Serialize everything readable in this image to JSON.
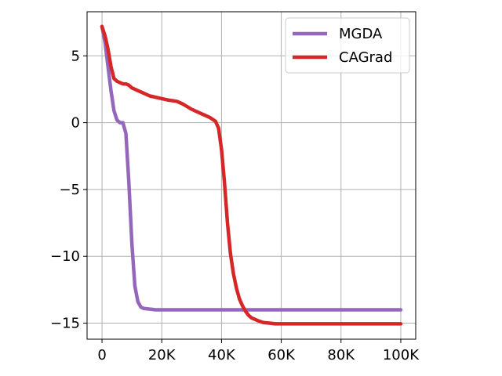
{
  "chart_data": {
    "type": "line",
    "title": "",
    "xlabel": "",
    "ylabel": "",
    "xlim": [
      -5000,
      105000
    ],
    "ylim": [
      -16.2,
      8.3
    ],
    "grid": true,
    "legend_position": "top-right",
    "x_ticks": [
      {
        "value": 0,
        "label": "0"
      },
      {
        "value": 20000,
        "label": "20K"
      },
      {
        "value": 40000,
        "label": "40K"
      },
      {
        "value": 60000,
        "label": "60K"
      },
      {
        "value": 80000,
        "label": "80K"
      },
      {
        "value": 100000,
        "label": "100K"
      }
    ],
    "y_ticks": [
      {
        "value": 5,
        "label": "5"
      },
      {
        "value": 0,
        "label": "0"
      },
      {
        "value": -5,
        "label": "−5"
      },
      {
        "value": -10,
        "label": "−10"
      },
      {
        "value": -15,
        "label": "−15"
      }
    ],
    "series": [
      {
        "name": "MGDA",
        "color": "#9467bd",
        "x": [
          0,
          1000,
          2000,
          3000,
          4000,
          5000,
          6000,
          7000,
          8000,
          9000,
          10000,
          11000,
          12000,
          13000,
          14000,
          16000,
          18000,
          20000,
          25000,
          40000,
          60000,
          80000,
          100000
        ],
        "y": [
          7.2,
          6.0,
          4.2,
          2.4,
          0.9,
          0.2,
          0.0,
          0.0,
          -0.8,
          -4.5,
          -9.0,
          -12.2,
          -13.4,
          -13.8,
          -13.9,
          -13.95,
          -14.0,
          -14.0,
          -14.0,
          -14.0,
          -14.0,
          -14.0,
          -14.0
        ]
      },
      {
        "name": "CAGrad",
        "color": "#d62728",
        "x": [
          0,
          1000,
          2000,
          3000,
          4000,
          5000,
          6000,
          7000,
          8000,
          9000,
          10000,
          12000,
          14000,
          16000,
          18000,
          20000,
          22000,
          25000,
          27000,
          30000,
          33000,
          36000,
          38000,
          39000,
          40000,
          41000,
          42000,
          43000,
          44000,
          45000,
          46000,
          47000,
          48000,
          49000,
          50000,
          52000,
          54000,
          56000,
          58000,
          60000,
          80000,
          100000
        ],
        "y": [
          7.2,
          6.5,
          5.5,
          4.2,
          3.3,
          3.1,
          3.0,
          2.9,
          2.9,
          2.8,
          2.6,
          2.4,
          2.2,
          2.0,
          1.9,
          1.8,
          1.7,
          1.6,
          1.4,
          1.0,
          0.7,
          0.4,
          0.1,
          -0.4,
          -2.0,
          -4.5,
          -7.5,
          -9.8,
          -11.3,
          -12.4,
          -13.2,
          -13.7,
          -14.1,
          -14.4,
          -14.6,
          -14.8,
          -14.95,
          -15.0,
          -15.05,
          -15.05,
          -15.05,
          -15.05
        ]
      }
    ]
  }
}
